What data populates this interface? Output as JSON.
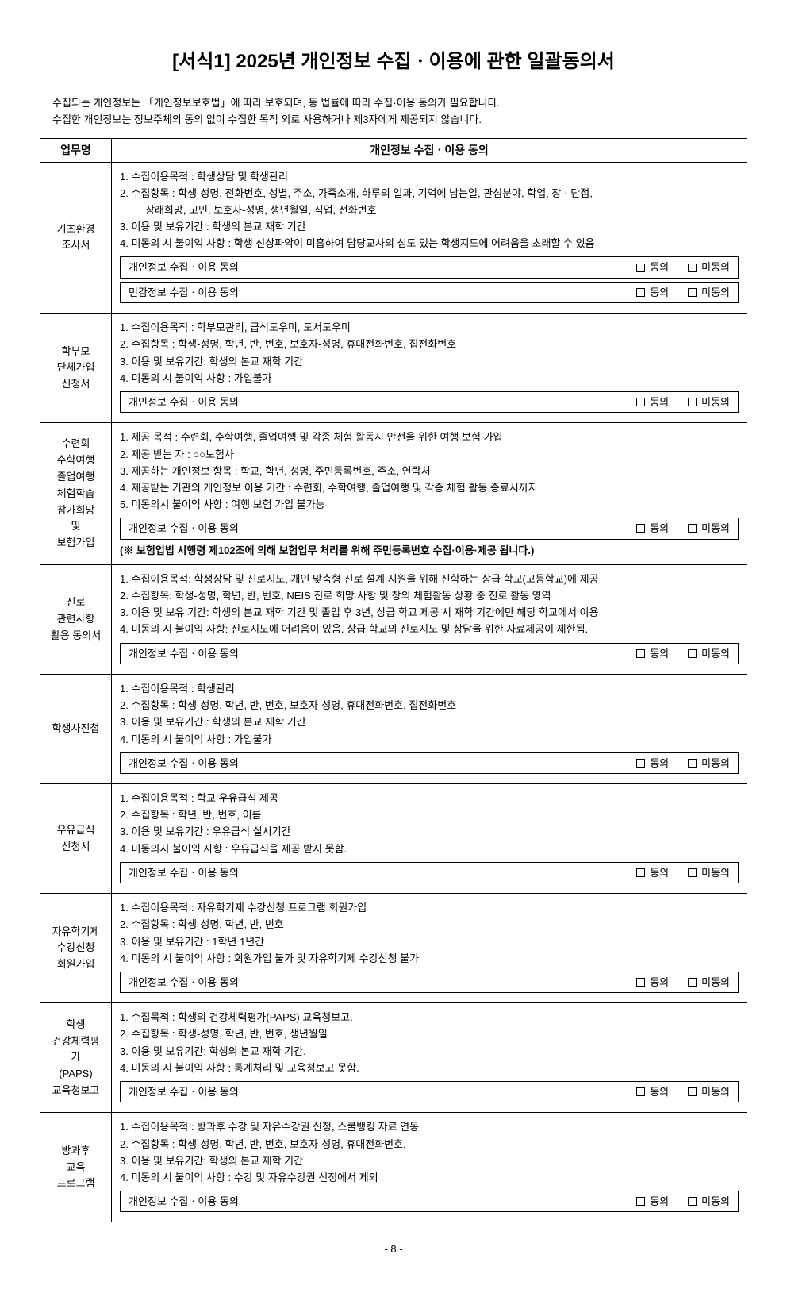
{
  "title": "[서식1] 2025년 개인정보 수집ㆍ이용에 관한 일괄동의서",
  "intro": {
    "line1": "수집되는 개인정보는 「개인정보보호법」에 따라 보호되며, 동 법률에 따라 수집·이용 동의가 필요합니다.",
    "line2": "수집한 개인정보는 정보주체의 동의 없이 수집한 목적 외로 사용하거나 제3자에게 제공되지 않습니다."
  },
  "headers": {
    "col1": "업무명",
    "col2": "개인정보 수집ㆍ이용 동의"
  },
  "consent_labels": {
    "personal": "개인정보 수집ㆍ이용 동의",
    "sensitive": "민감정보 수집ㆍ이용 동의",
    "agree": "동의",
    "disagree": "미동의"
  },
  "sections": [
    {
      "label": "기초환경\n조사서",
      "lines": [
        "1. 수집이용목적 : 학생상담 및 학생관리",
        "2. 수집항목 : 학생-성명, 전화번호, 성별, 주소, 가족소개, 하루의 일과, 기억에 남는일, 관심분야, 학업, 장ㆍ단점,",
        "   장래희망, 고민, 보호자-성명, 생년월일, 직업, 전화번호",
        "3. 이용 및 보유기간 : 학생의 본교 재학 기간",
        "4. 미동의 시 불이익 사항 : 학생 신상파악이 미흡하여 담당교사의 심도 있는 학생지도에 어려움을 초래할 수 있음"
      ],
      "consents": [
        "personal",
        "sensitive"
      ]
    },
    {
      "label": "학부모\n단체가입\n신청서",
      "lines": [
        "1. 수집이용목적 : 학부모관리, 급식도우미, 도서도우미",
        "2. 수집항목 : 학생-성명, 학년, 반, 번호, 보호자-성명, 휴대전화번호, 집전화번호",
        "3. 이용 및 보유기간: 학생의 본교 재학 기간",
        "4. 미동의 시 불이익 사항 : 가입불가"
      ],
      "consents": [
        "personal"
      ]
    },
    {
      "label": "수련회\n수학여행\n졸업여행\n체험학습\n참가희망\n및\n보험가입",
      "lines": [
        "1. 제공 목적 : 수련회, 수학여행, 졸업여행 및 각종 체험 활동시 안전을 위한 여행 보험 가입",
        "2. 제공 받는 자 : ○○보험사",
        "3. 제공하는 개인정보 항목 : 학교, 학년, 성명, 주민등록번호, 주소, 연락처",
        "4. 제공받는 기관의 개인정보 이용 기간 : 수련회, 수학여행, 졸업여행 및 각종 체험 활동 종료시까지",
        "5. 미동의시 불이익 사항 : 여행 보험 가입 불가능"
      ],
      "consents": [
        "personal"
      ],
      "note": "(※ 보험업법 시행령 제102조에 의해 보험업무 처리를 위해 주민등록번호 수집·이용·제공 됩니다.)"
    },
    {
      "label": "진로\n관련사항\n활용 동의서",
      "lines": [
        "1. 수집이용목적: 학생상담 및 진로지도, 개인 맞춤형 진로 설계 지원을 위해 진학하는 상급 학교(고등학교)에 제공",
        "2. 수집항목: 학생-성명, 학년, 반, 번호, NEIS 진로 희망 사항 및 창의 체험활동 상황 중 진로 활동 영역",
        "3. 이용 및 보유 기간: 학생의 본교 재학 기간 및 졸업 후 3년, 상급 학교 제공 시 재학 기간에만 해당 학교에서 이용",
        "4. 미동의 시 불이익 사항: 진로지도에 어려움이 있음. 상급 학교의 진로지도 및 상담을 위한 자료제공이 제한됨."
      ],
      "consents": [
        "personal"
      ]
    },
    {
      "label": "학생사진첩",
      "lines": [
        "1. 수집이용목적 : 학생관리",
        "2. 수집항목 : 학생-성명, 학년, 반, 번호, 보호자-성명, 휴대전화번호, 집전화번호",
        "3. 이용 및 보유기간 : 학생의 본교 재학 기간",
        "4. 미동의 시 불이익 사항 : 가입불가"
      ],
      "consents": [
        "personal"
      ]
    },
    {
      "label": "우유급식\n신청서",
      "lines": [
        "1. 수집이용목적 : 학교 우유급식 제공",
        "2. 수집항목 : 학년, 반, 번호, 이름",
        "3. 이용 및 보유기간 : 우유급식 실시기간",
        "4. 미동의시 불이익 사항 : 우유급식을 제공 받지 못함."
      ],
      "consents": [
        "personal"
      ]
    },
    {
      "label": "자유학기제\n수강신청\n회원가입",
      "lines": [
        "1. 수집이용목적 : 자유학기제 수강신청 프로그램 회원가입",
        "2. 수집항목 : 학생-성명, 학년, 반, 번호",
        "3. 이용 및 보유기간 : 1학년 1년간",
        "4. 미동의 시 불이익 사항 : 회원가입 불가 및 자유학기제 수강신청 불가"
      ],
      "consents": [
        "personal"
      ]
    },
    {
      "label": "학생\n건강체력평가\n(PAPS)\n교육청보고",
      "lines": [
        "1. 수집목적 : 학생의 건강체력평가(PAPS) 교육청보고.",
        "2. 수집항목 : 학생-성명, 학년, 반, 번호, 생년월일",
        "3. 이용 및 보유기간: 학생의 본교 재학 기간.",
        "4. 미동의 시 불이익 사항 : 통계처리 및 교육청보고 못함."
      ],
      "consents": [
        "personal"
      ]
    },
    {
      "label": "방과후\n교육\n프로그램",
      "lines": [
        "1. 수집이용목적 : 방과후 수강 및 자유수강권 신청, 스쿨뱅킹 자료 연동",
        "2. 수집항목 : 학생-성명, 학년, 반, 번호, 보호자-성명, 휴대전화번호,",
        "3. 이용 및 보유기간: 학생의 본교 재학 기간",
        "4. 미동의 시 불이익 사항 : 수강 및 자유수강권 선정에서 제외"
      ],
      "consents": [
        "personal"
      ]
    }
  ],
  "page_number": "- 8 -"
}
